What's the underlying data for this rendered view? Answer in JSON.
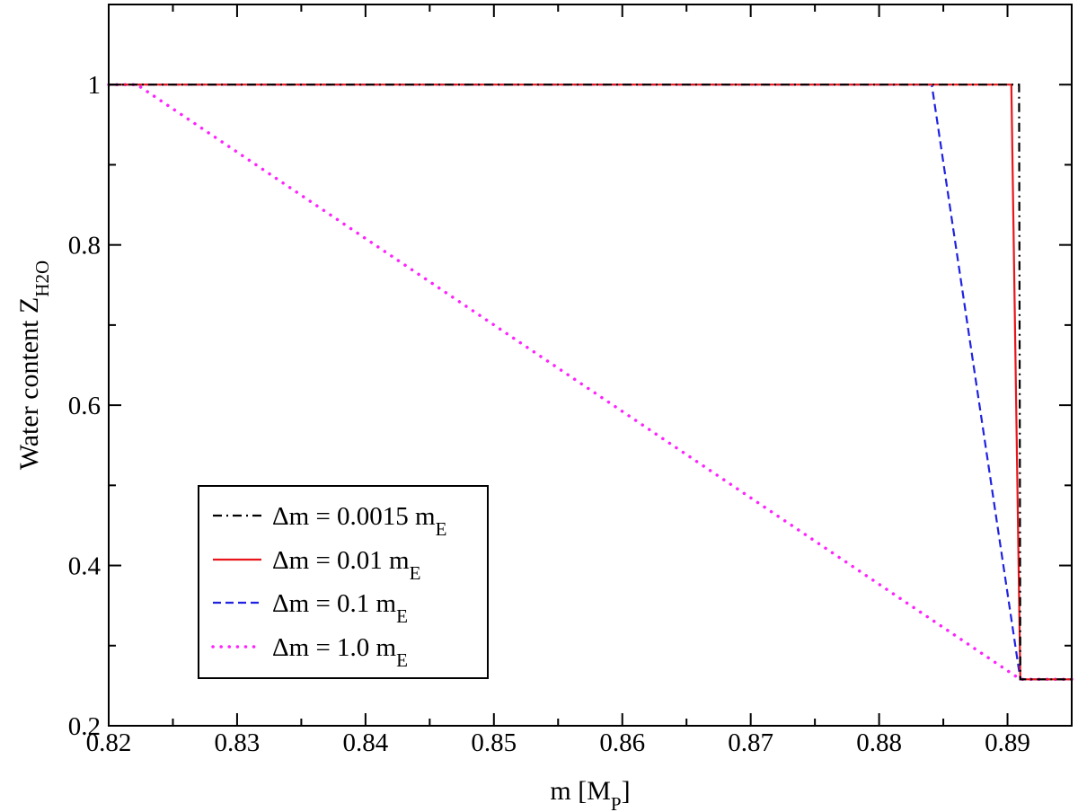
{
  "chart_data": {
    "type": "line",
    "xlabel_main": "m [M",
    "xlabel_sub": "P",
    "xlabel_end": "]",
    "ylabel_main": "Water content  Z",
    "ylabel_sub": "H2O",
    "xlim": [
      0.82,
      0.895
    ],
    "ylim": [
      0.2,
      1.1
    ],
    "xticks": [
      0.82,
      0.83,
      0.84,
      0.85,
      0.86,
      0.87,
      0.88,
      0.89
    ],
    "xtick_labels": [
      "0.82",
      "0.83",
      "0.84",
      "0.85",
      "0.86",
      "0.87",
      "0.88",
      "0.89"
    ],
    "yticks": [
      0.2,
      0.4,
      0.6,
      0.8,
      1.0
    ],
    "ytick_labels": [
      "0.2",
      "0.4",
      "0.6",
      "0.8",
      "1"
    ],
    "grid": false,
    "legend_position": "bottom-left",
    "series": [
      {
        "name": "Δm = 0.0015 m",
        "name_sub": "E",
        "color": "#000000",
        "style": "dashdot",
        "x": [
          0.82,
          0.8909,
          0.891,
          0.895
        ],
        "y": [
          1.0,
          1.0,
          0.258,
          0.258
        ]
      },
      {
        "name": "Δm = 0.01 m",
        "name_sub": "E",
        "color": "#e8161b",
        "style": "solid",
        "x": [
          0.82,
          0.8903,
          0.891,
          0.895
        ],
        "y": [
          1.0,
          1.0,
          0.258,
          0.258
        ]
      },
      {
        "name": "Δm = 0.1 m",
        "name_sub": "E",
        "color": "#1f22e0",
        "style": "dashed",
        "x": [
          0.82,
          0.8841,
          0.891,
          0.895
        ],
        "y": [
          1.0,
          1.0,
          0.258,
          0.258
        ]
      },
      {
        "name": "Δm = 1.0 m",
        "name_sub": "E",
        "color": "#ff22ff",
        "style": "dotted",
        "x": [
          0.82,
          0.8222,
          0.891,
          0.895
        ],
        "y": [
          1.0,
          1.0,
          0.258,
          0.258
        ]
      }
    ]
  }
}
